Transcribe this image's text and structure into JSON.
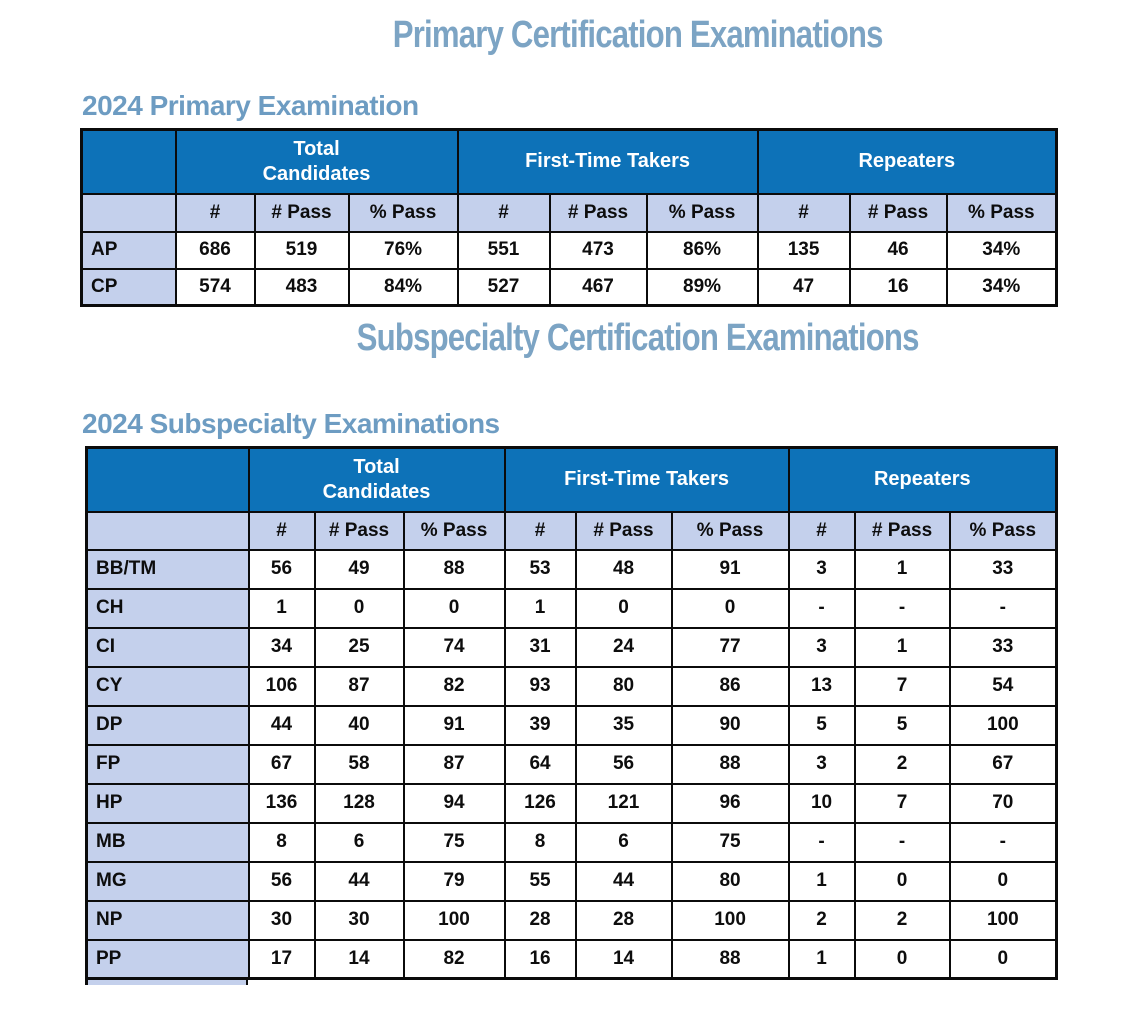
{
  "titles": {
    "primary": "Primary Certification Examinations",
    "subspecialty": "Subspecialty Certification Examinations"
  },
  "colors": {
    "group_header_blue": "#0D72B8",
    "light_blue": "#C4D0EC",
    "title_blue": "#7CA4C4",
    "heading_blue": "#6D9CC2"
  },
  "primary": {
    "heading": "2024 Primary Examination",
    "col_groups": [
      "Total\nCandidates",
      "First-Time Takers",
      "Repeaters"
    ],
    "sub_headers": [
      "#",
      "# Pass",
      "% Pass"
    ],
    "rows": [
      {
        "label": "AP",
        "values": [
          "686",
          "519",
          "76%",
          "551",
          "473",
          "86%",
          "135",
          "46",
          "34%"
        ]
      },
      {
        "label": "CP",
        "values": [
          "574",
          "483",
          "84%",
          "527",
          "467",
          "89%",
          "47",
          "16",
          "34%"
        ]
      }
    ]
  },
  "subspecialty": {
    "heading": "2024 Subspecialty Examinations",
    "col_groups": [
      "Total\nCandidates",
      "First-Time Takers",
      "Repeaters"
    ],
    "sub_headers": [
      "#",
      "# Pass",
      "% Pass"
    ],
    "rows": [
      {
        "label": "BB/TM",
        "values": [
          "56",
          "49",
          "88",
          "53",
          "48",
          "91",
          "3",
          "1",
          "33"
        ]
      },
      {
        "label": "CH",
        "values": [
          "1",
          "0",
          "0",
          "1",
          "0",
          "0",
          "-",
          "-",
          "-"
        ]
      },
      {
        "label": "CI",
        "values": [
          "34",
          "25",
          "74",
          "31",
          "24",
          "77",
          "3",
          "1",
          "33"
        ]
      },
      {
        "label": "CY",
        "values": [
          "106",
          "87",
          "82",
          "93",
          "80",
          "86",
          "13",
          "7",
          "54"
        ]
      },
      {
        "label": "DP",
        "values": [
          "44",
          "40",
          "91",
          "39",
          "35",
          "90",
          "5",
          "5",
          "100"
        ]
      },
      {
        "label": "FP",
        "values": [
          "67",
          "58",
          "87",
          "64",
          "56",
          "88",
          "3",
          "2",
          "67"
        ]
      },
      {
        "label": "HP",
        "values": [
          "136",
          "128",
          "94",
          "126",
          "121",
          "96",
          "10",
          "7",
          "70"
        ]
      },
      {
        "label": "MB",
        "values": [
          "8",
          "6",
          "75",
          "8",
          "6",
          "75",
          "-",
          "-",
          "-"
        ]
      },
      {
        "label": "MG",
        "values": [
          "56",
          "44",
          "79",
          "55",
          "44",
          "80",
          "1",
          "0",
          "0"
        ]
      },
      {
        "label": "NP",
        "values": [
          "30",
          "30",
          "100",
          "28",
          "28",
          "100",
          "2",
          "2",
          "100"
        ]
      },
      {
        "label": "PP",
        "values": [
          "17",
          "14",
          "82",
          "16",
          "14",
          "88",
          "1",
          "0",
          "0"
        ]
      }
    ]
  }
}
